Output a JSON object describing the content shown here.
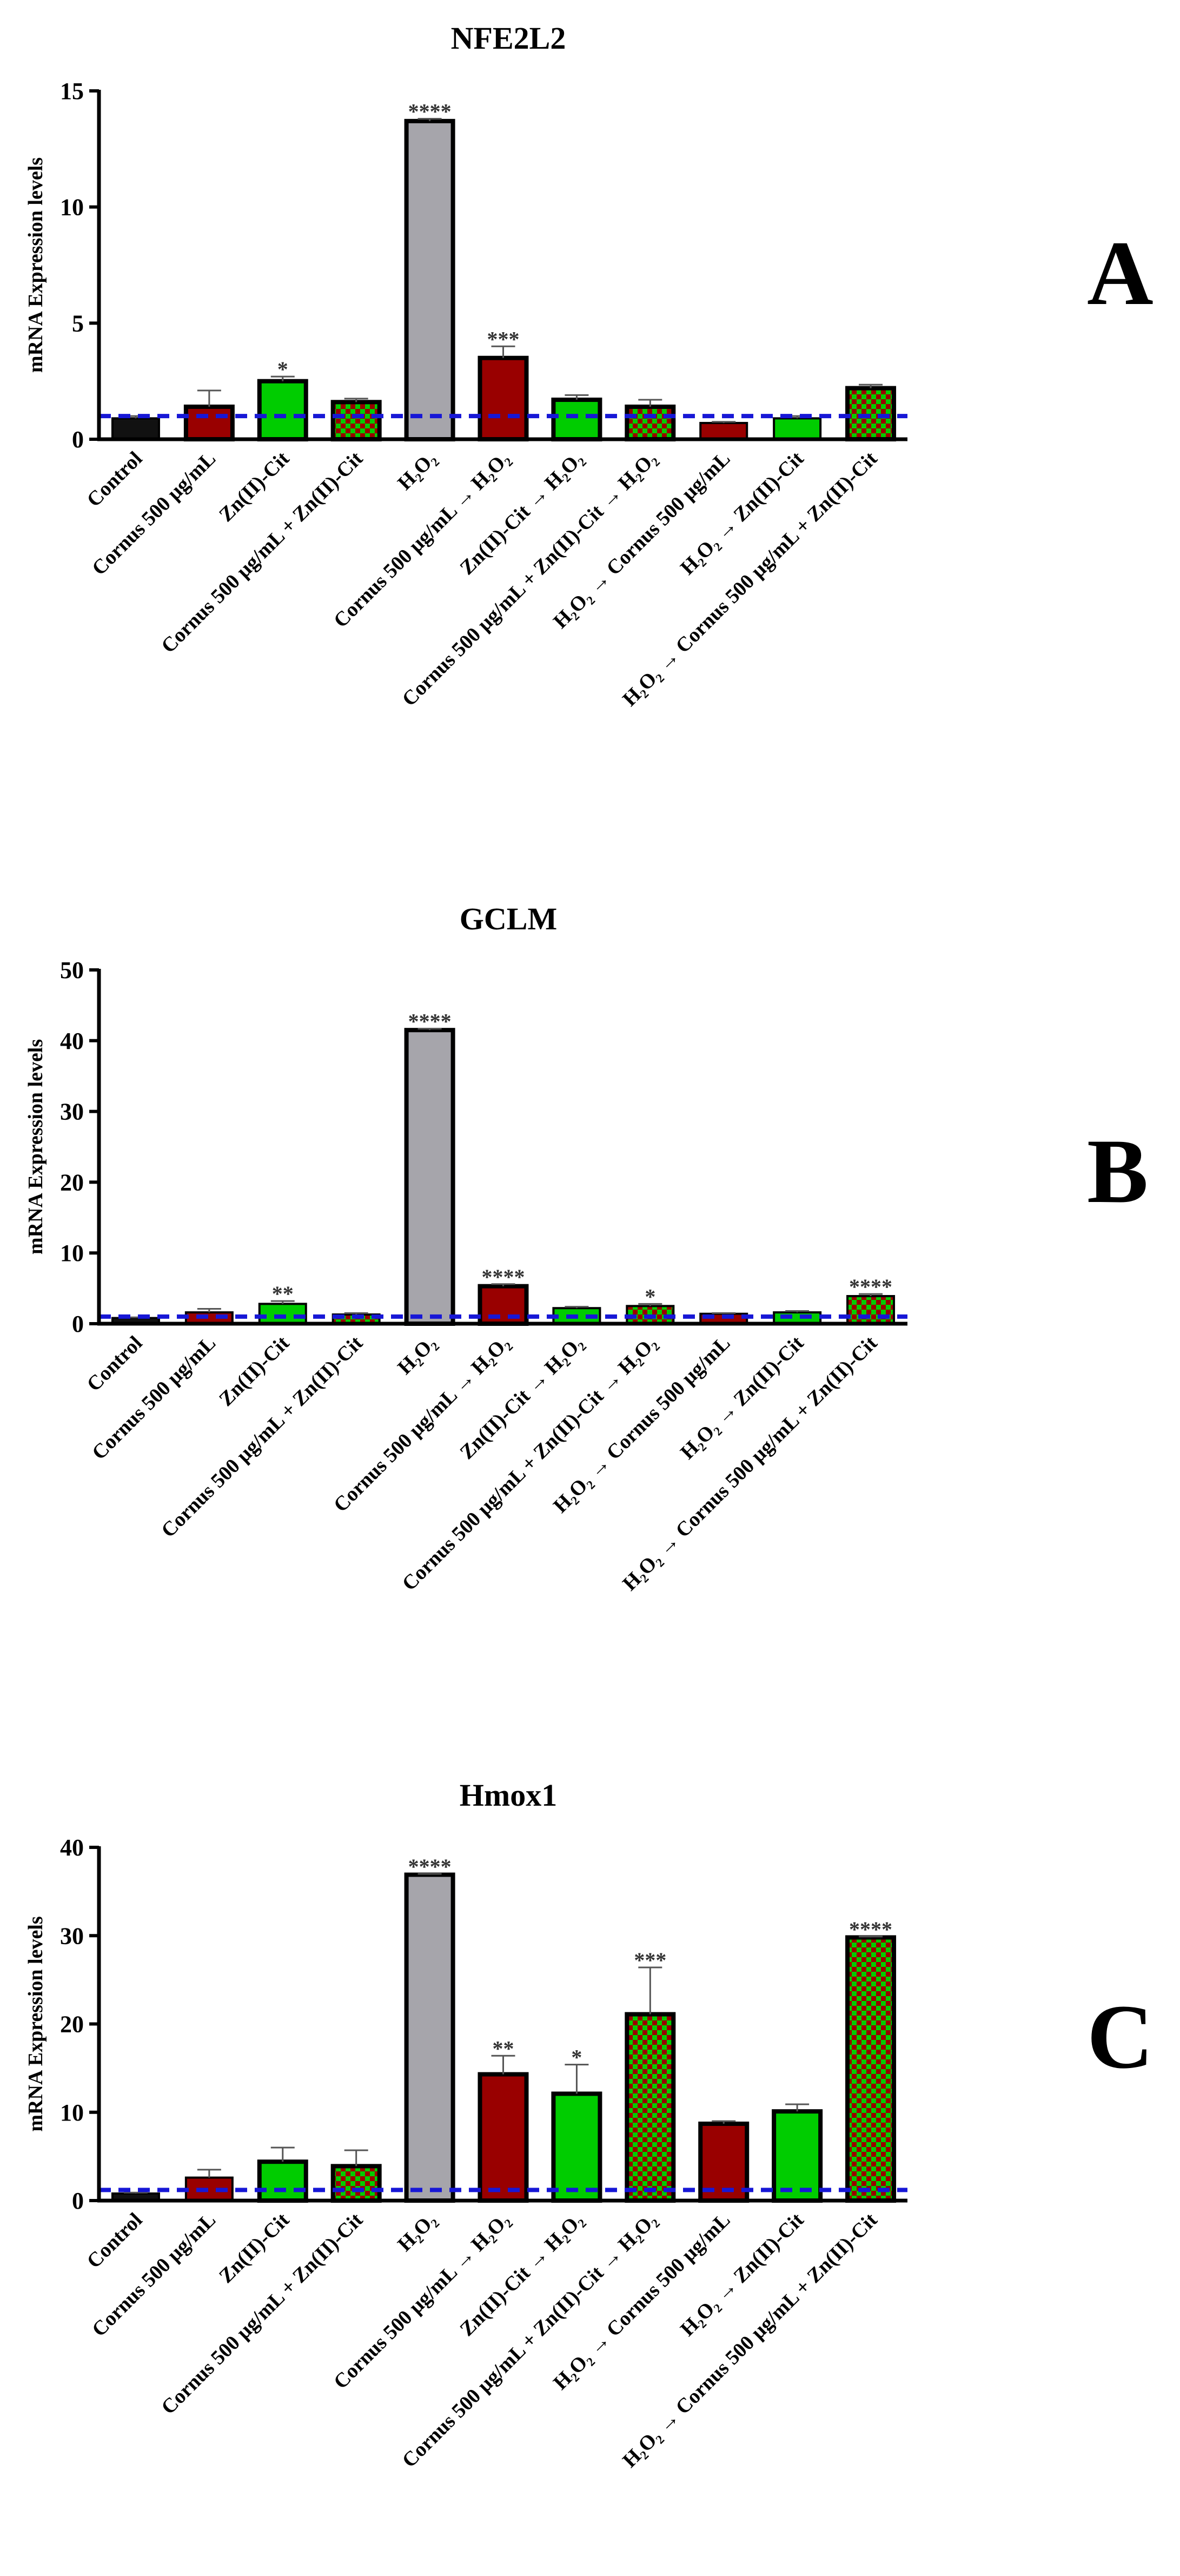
{
  "colors": {
    "control": "#111111",
    "cornus": "#990000",
    "zinc": "#00cc00",
    "h2o2": "#a6a5ab",
    "mix_a": "#00cc00",
    "mix_b": "#990000",
    "baseline": "#1717d6"
  },
  "panels": [
    {
      "letter": "A",
      "chart_data": {
        "type": "bar",
        "title": "NFE2L2",
        "ylabel": "mRNA Expression levels",
        "xlabel": "",
        "ylim": [
          0,
          15
        ],
        "yticks": [
          "0",
          "5",
          "10",
          "15"
        ],
        "baseline": 1,
        "categories": [
          "Control",
          "Cornus 500 µg/mL",
          "Zn(II)-Cit",
          "Cornus 500 µg/mL + Zn(II)-Cit",
          "H₂O₂",
          "Cornus 500 µg/mL → H₂O₂",
          "Zn(II)-Cit → H₂O₂",
          "Cornus 500 µg/mL + Zn(II)-Cit → H₂O₂",
          "H₂O₂ → Cornus 500 µg/mL",
          "H₂O₂ → Zn(II)-Cit",
          "H₂O₂ → Cornus 500 µg/mL + Zn(II)-Cit"
        ],
        "values": [
          0.9,
          1.4,
          2.5,
          1.6,
          13.7,
          3.5,
          1.7,
          1.4,
          0.7,
          0.9,
          2.2
        ],
        "errors": [
          0.1,
          0.7,
          0.2,
          0.15,
          0.1,
          0.5,
          0.2,
          0.3,
          0.05,
          0.1,
          0.15
        ],
        "fills": [
          "control",
          "cornus",
          "zinc",
          "mix",
          "h2o2",
          "cornus",
          "zinc",
          "mix",
          "cornus",
          "zinc",
          "mix"
        ],
        "significance": [
          "",
          "",
          "*",
          "",
          "****",
          "***",
          "",
          "",
          "",
          "",
          ""
        ]
      }
    },
    {
      "letter": "B",
      "chart_data": {
        "type": "bar",
        "title": "GCLM",
        "ylabel": "mRNA Expression levels",
        "xlabel": "",
        "ylim": [
          0,
          50
        ],
        "yticks": [
          "0",
          "10",
          "20",
          "30",
          "40",
          "50"
        ],
        "baseline": 1,
        "categories": [
          "Control",
          "Cornus 500 µg/mL",
          "Zn(II)-Cit",
          "Cornus 500 µg/mL + Zn(II)-Cit",
          "H₂O₂",
          "Cornus 500 µg/mL → H₂O₂",
          "Zn(II)-Cit → H₂O₂",
          "Cornus 500 µg/mL + Zn(II)-Cit → H₂O₂",
          "H₂O₂ → Cornus 500 µg/mL",
          "H₂O₂ → Zn(II)-Cit",
          "H₂O₂ → Cornus 500 µg/mL + Zn(II)-Cit"
        ],
        "values": [
          0.8,
          1.6,
          2.8,
          1.3,
          41.5,
          5.3,
          2.2,
          2.5,
          1.4,
          1.6,
          3.9
        ],
        "errors": [
          0.1,
          0.5,
          0.4,
          0.2,
          0.2,
          0.3,
          0.2,
          0.3,
          0.1,
          0.2,
          0.3
        ],
        "fills": [
          "control",
          "cornus",
          "zinc",
          "mix",
          "h2o2",
          "cornus",
          "zinc",
          "mix",
          "cornus",
          "zinc",
          "mix"
        ],
        "significance": [
          "",
          "",
          "**",
          "",
          "****",
          "****",
          "",
          "*",
          "",
          "",
          "****"
        ]
      }
    },
    {
      "letter": "C",
      "chart_data": {
        "type": "bar",
        "title": "Hmox1",
        "ylabel": "mRNA Expression levels",
        "xlabel": "",
        "ylim": [
          0,
          40
        ],
        "yticks": [
          "0",
          "10",
          "20",
          "30",
          "40"
        ],
        "baseline": 1.2,
        "categories": [
          "Control",
          "Cornus 500 µg/mL",
          "Zn(II)-Cit",
          "Cornus 500 µg/mL + Zn(II)-Cit",
          "H₂O₂",
          "Cornus 500 µg/mL → H₂O₂",
          "Zn(II)-Cit → H₂O₂",
          "Cornus 500 µg/mL + Zn(II)-Cit → H₂O₂",
          "H₂O₂ → Cornus 500 µg/mL",
          "H₂O₂ → Zn(II)-Cit",
          "H₂O₂ → Cornus 500 µg/mL + Zn(II)-Cit"
        ],
        "values": [
          0.8,
          2.6,
          4.4,
          3.9,
          36.9,
          14.3,
          12.1,
          21.1,
          8.7,
          10.1,
          29.8
        ],
        "errors": [
          0.1,
          0.9,
          1.6,
          1.8,
          0.1,
          2.1,
          3.3,
          5.3,
          0.3,
          0.8,
          0.1
        ],
        "fills": [
          "control",
          "cornus",
          "zinc",
          "mix",
          "h2o2",
          "cornus",
          "zinc",
          "mix",
          "cornus",
          "zinc",
          "mix"
        ],
        "significance": [
          "",
          "",
          "",
          "",
          "****",
          "**",
          "*",
          "***",
          "",
          "",
          "****"
        ]
      }
    }
  ]
}
